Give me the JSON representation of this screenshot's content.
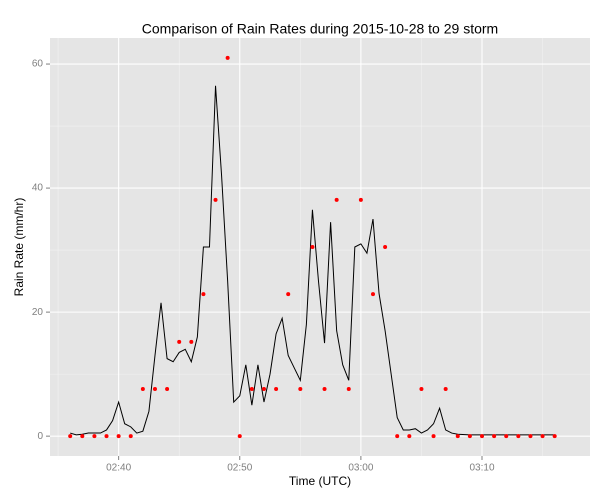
{
  "chart_data": {
    "type": "line",
    "title": "Comparison of Rain Rates during 2015-10-28 to 29 storm",
    "x_label": "Time (UTC)",
    "y_label": "Rain Rate (mm/hr)",
    "xlim": [
      "02:34:20",
      "03:18:55"
    ],
    "xticks": [
      "02:40",
      "02:50",
      "03:00",
      "03:10"
    ],
    "ylim": [
      -3.2,
      64.2
    ],
    "yticks": [
      0,
      20,
      40,
      60
    ],
    "grid": true,
    "line": {
      "color": "#000000",
      "x": [
        "02:36:00",
        "02:36:30",
        "02:37:00",
        "02:37:30",
        "02:38:00",
        "02:38:30",
        "02:39:00",
        "02:39:30",
        "02:40:00",
        "02:40:30",
        "02:41:00",
        "02:41:30",
        "02:42:00",
        "02:42:30",
        "02:43:00",
        "02:43:30",
        "02:44:00",
        "02:44:30",
        "02:45:00",
        "02:45:30",
        "02:46:00",
        "02:46:30",
        "02:47:00",
        "02:47:30",
        "02:48:00",
        "02:48:30",
        "02:49:00",
        "02:49:30",
        "02:50:00",
        "02:50:30",
        "02:51:00",
        "02:51:30",
        "02:52:00",
        "02:52:30",
        "02:53:00",
        "02:53:30",
        "02:54:00",
        "02:54:30",
        "02:55:00",
        "02:55:30",
        "02:56:00",
        "02:56:30",
        "02:57:00",
        "02:57:30",
        "02:58:00",
        "02:58:30",
        "02:59:00",
        "02:59:30",
        "03:00:00",
        "03:00:30",
        "03:01:00",
        "03:01:30",
        "03:02:00",
        "03:02:30",
        "03:03:00",
        "03:03:30",
        "03:04:00",
        "03:04:30",
        "03:05:00",
        "03:05:30",
        "03:06:00",
        "03:06:30",
        "03:07:00",
        "03:07:30",
        "03:08:00",
        "03:09:00",
        "03:10:00",
        "03:11:00",
        "03:12:00",
        "03:13:00",
        "03:14:00",
        "03:15:00",
        "03:16:00"
      ],
      "values": [
        0.5,
        0.2,
        0.3,
        0.5,
        0.5,
        0.5,
        1,
        2.5,
        5.5,
        2,
        1.5,
        0.5,
        0.8,
        4,
        13,
        21.5,
        12.5,
        12,
        13.5,
        14,
        12,
        16,
        30.5,
        30.5,
        56.5,
        42,
        25,
        5.5,
        6.5,
        11.5,
        5,
        11.5,
        5.5,
        10,
        16.5,
        19,
        13,
        11,
        9,
        18,
        36.5,
        25,
        15,
        34.5,
        17,
        11.5,
        9,
        30.5,
        31,
        29.5,
        35,
        23,
        17,
        10,
        3,
        1,
        1,
        1.2,
        0.5,
        1,
        2,
        4.5,
        1,
        0.5,
        0.3,
        0.2,
        0.2,
        0.2,
        0.2,
        0.2,
        0.2,
        0.2,
        0.2
      ]
    },
    "points": {
      "color": "#ff0000",
      "x": [
        "02:36",
        "02:37",
        "02:38",
        "02:39",
        "02:40",
        "02:41",
        "02:42",
        "02:43",
        "02:44",
        "02:45",
        "02:46",
        "02:47",
        "02:48",
        "02:49",
        "02:50",
        "02:51",
        "02:52",
        "02:53",
        "02:54",
        "02:55",
        "02:56",
        "02:57",
        "02:58",
        "02:59",
        "03:00",
        "03:01",
        "03:02",
        "03:03",
        "03:04",
        "03:05",
        "03:06",
        "03:07",
        "03:08",
        "03:09",
        "03:10",
        "03:11",
        "03:12",
        "03:13",
        "03:14",
        "03:15",
        "03:16"
      ],
      "values": [
        0,
        0,
        0,
        0,
        0,
        0,
        7.6,
        7.6,
        7.6,
        15.2,
        15.2,
        22.9,
        38.1,
        61,
        0,
        7.6,
        7.6,
        7.6,
        22.9,
        7.6,
        30.5,
        7.6,
        38.1,
        7.6,
        38.1,
        22.9,
        30.5,
        0,
        0,
        7.6,
        0,
        7.6,
        0,
        0,
        0,
        0,
        0,
        0,
        0,
        0,
        0
      ]
    }
  }
}
